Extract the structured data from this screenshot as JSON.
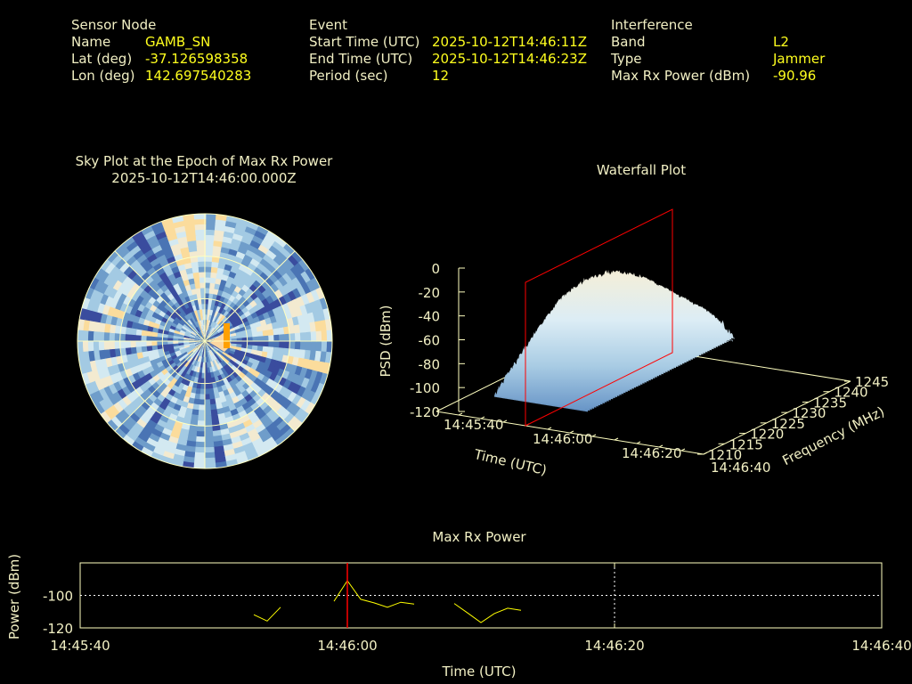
{
  "header": {
    "sensor": {
      "title": "Sensor Node",
      "rows": [
        {
          "label": "Name",
          "value": "GAMB_SN"
        },
        {
          "label": "Lat (deg)",
          "value": "-37.126598358"
        },
        {
          "label": "Lon (deg)",
          "value": "142.697540283"
        }
      ]
    },
    "event": {
      "title": "Event",
      "rows": [
        {
          "label": "Start Time (UTC)",
          "value": "2025-10-12T14:46:11Z"
        },
        {
          "label": "End Time (UTC)",
          "value": "2025-10-12T14:46:23Z"
        },
        {
          "label": "Period (sec)",
          "value": "12"
        }
      ]
    },
    "interference": {
      "title": "Interference",
      "rows": [
        {
          "label": "Band",
          "value": "L2"
        },
        {
          "label": "Type",
          "value": "Jammer"
        },
        {
          "label": "Max Rx Power (dBm)",
          "value": "-90.96"
        }
      ]
    }
  },
  "colors": {
    "label": "#f2f0c4",
    "value": "#ffff1e",
    "marker": "#ff0000",
    "line": "#ffff00",
    "axis": "#ffffc0"
  },
  "chart_data": [
    {
      "type": "heatmap",
      "title": "Sky Plot at the Epoch of Max Rx Power",
      "subtitle": "2025-10-12T14:46:00.000Z",
      "projection": "polar",
      "rings": 3,
      "spokes_deg": 45,
      "palette": [
        "#3a4c9e",
        "#4a74b4",
        "#6f9dca",
        "#a3cae3",
        "#d3e9f1",
        "#f3ead0",
        "#fbdc9c"
      ],
      "peak": {
        "azimuth_deg": 90,
        "color": "#ffa000"
      }
    },
    {
      "type": "area",
      "title": "Waterfall Plot",
      "xlabel": "Time (UTC)",
      "ylabel": "Frequency (MHz)",
      "zlabel": "PSD (dBm)",
      "x_ticks": [
        "14:45:40",
        "14:46:00",
        "14:46:20",
        "14:46:40"
      ],
      "x_range_s": [
        0,
        60
      ],
      "y_ticks": [
        1210,
        1215,
        1220,
        1225,
        1230,
        1235,
        1240,
        1245
      ],
      "z_ticks": [
        0,
        -20,
        -40,
        -60,
        -80,
        -100,
        -120
      ],
      "z_range": [
        -120,
        0
      ],
      "marker_time_s": 20,
      "grid_time_s": [
        13,
        16,
        19,
        22,
        25,
        28,
        31,
        34
      ],
      "grid_freq_mhz": [
        1210,
        1215,
        1220,
        1225,
        1230,
        1235,
        1240,
        1245
      ],
      "psd_dbm": [
        [
          -98,
          -92,
          -85,
          -80,
          -82,
          -88,
          -95,
          -100
        ],
        [
          -80,
          -62,
          -48,
          -42,
          -45,
          -55,
          -70,
          -85
        ],
        [
          -72,
          -45,
          -30,
          -26,
          -28,
          -40,
          -60,
          -78
        ],
        [
          -70,
          -42,
          -27,
          -24,
          -26,
          -38,
          -58,
          -76
        ],
        [
          -74,
          -45,
          -30,
          -26,
          -30,
          -42,
          -60,
          -78
        ],
        [
          -80,
          -52,
          -36,
          -32,
          -34,
          -46,
          -64,
          -82
        ],
        [
          -86,
          -62,
          -48,
          -44,
          -46,
          -55,
          -70,
          -88
        ],
        [
          -100,
          -90,
          -82,
          -78,
          -80,
          -86,
          -94,
          -100
        ]
      ]
    },
    {
      "type": "line",
      "title": "Max Rx Power",
      "xlabel": "Time (UTC)",
      "ylabel": "Power (dBm)",
      "x_ticks": [
        "14:45:40",
        "14:46:00",
        "14:46:20",
        "14:46:40"
      ],
      "x_range_s": [
        0,
        60
      ],
      "y_ticks": [
        -100,
        -120
      ],
      "ylim": [
        -120,
        -80
      ],
      "marker_time_s": 20,
      "x_s": [
        13,
        14,
        15,
        null,
        19,
        20,
        21,
        22,
        23,
        24,
        25,
        null,
        28,
        29,
        30,
        31,
        32,
        33
      ],
      "y_dbm": [
        -111.9,
        -115.8,
        -107.3,
        null,
        -103.6,
        -90.96,
        -102.4,
        -104.6,
        -107.3,
        -104.2,
        -105.3,
        null,
        -105,
        -110.8,
        -116.7,
        -111.2,
        -107.9,
        -109.2
      ]
    }
  ]
}
